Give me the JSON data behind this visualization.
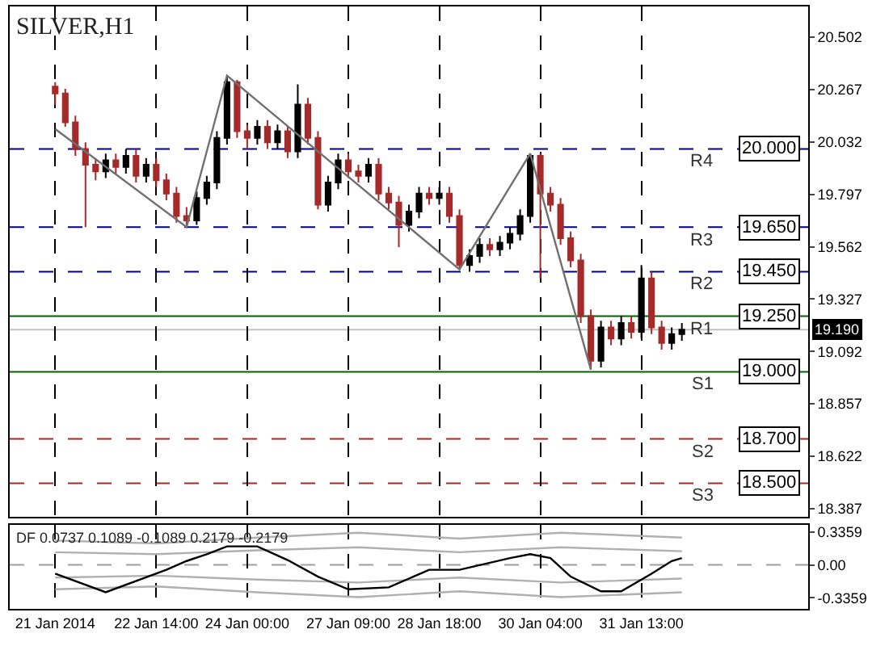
{
  "chart_data": [
    {
      "type": "candlestick",
      "title": "SILVER,H1",
      "categories": [
        null,
        null,
        null,
        null,
        null,
        null,
        null,
        null,
        null,
        null,
        null,
        null,
        null,
        null,
        null,
        null,
        null,
        null,
        null,
        null,
        null,
        null,
        null,
        null,
        null,
        null,
        null,
        null,
        null,
        null,
        null,
        null,
        null,
        null,
        null,
        null,
        null,
        null,
        null,
        null,
        null,
        null,
        null,
        null,
        null,
        null,
        null,
        null,
        null,
        null,
        null,
        null,
        null,
        null,
        null,
        null,
        null,
        null,
        null,
        null,
        null,
        null,
        null,
        null,
        null,
        null,
        null,
        null,
        null,
        null,
        null,
        null,
        null,
        null,
        null,
        null,
        null,
        null,
        null
      ],
      "ohlc": [
        null,
        null,
        null,
        null,
        [
          20.28,
          20.3,
          20.2,
          20.25
        ],
        [
          20.25,
          20.27,
          20.1,
          20.12
        ],
        [
          20.12,
          20.15,
          19.97,
          20.0
        ],
        [
          20.0,
          20.03,
          19.65,
          19.93
        ],
        [
          19.93,
          19.96,
          19.86,
          19.9
        ],
        [
          19.9,
          19.98,
          19.87,
          19.95
        ],
        [
          19.95,
          19.98,
          19.89,
          19.92
        ],
        [
          19.92,
          20.0,
          19.89,
          19.97
        ],
        [
          19.97,
          20.0,
          19.85,
          19.88
        ],
        [
          19.88,
          19.96,
          19.85,
          19.93
        ],
        [
          19.93,
          19.96,
          19.83,
          19.86
        ],
        [
          19.86,
          19.89,
          19.77,
          19.8
        ],
        [
          19.8,
          19.83,
          19.67,
          19.7
        ],
        [
          19.7,
          19.74,
          19.65,
          19.68
        ],
        [
          19.68,
          19.81,
          19.66,
          19.78
        ],
        [
          19.78,
          19.88,
          19.75,
          19.85
        ],
        [
          19.85,
          20.08,
          19.82,
          20.05
        ],
        [
          20.05,
          20.33,
          20.02,
          20.3
        ],
        [
          20.3,
          20.31,
          20.05,
          20.08
        ],
        [
          20.08,
          20.11,
          20.0,
          20.05
        ],
        [
          20.05,
          20.13,
          20.02,
          20.1
        ],
        [
          20.1,
          20.13,
          20.0,
          20.03
        ],
        [
          20.03,
          20.11,
          20.0,
          20.08
        ],
        [
          20.08,
          20.1,
          19.96,
          19.99
        ],
        [
          19.99,
          20.29,
          19.96,
          20.2
        ],
        [
          20.2,
          20.23,
          20.02,
          20.05
        ],
        [
          20.05,
          20.08,
          19.73,
          19.75
        ],
        [
          19.75,
          19.88,
          19.72,
          19.85
        ],
        [
          19.85,
          19.98,
          19.82,
          19.95
        ],
        [
          19.95,
          19.98,
          19.87,
          19.9
        ],
        [
          19.9,
          19.93,
          19.85,
          19.88
        ],
        [
          19.88,
          19.96,
          19.85,
          19.93
        ],
        [
          19.93,
          19.96,
          19.77,
          19.8
        ],
        [
          19.8,
          19.83,
          19.73,
          19.76
        ],
        [
          19.76,
          19.79,
          19.56,
          19.66
        ],
        [
          19.66,
          19.75,
          19.63,
          19.72
        ],
        [
          19.72,
          19.83,
          19.69,
          19.8
        ],
        [
          19.8,
          19.83,
          19.75,
          19.78
        ],
        [
          19.78,
          19.83,
          19.75,
          19.8
        ],
        [
          19.8,
          19.83,
          19.67,
          19.7
        ],
        [
          19.7,
          19.73,
          19.46,
          19.48
        ],
        [
          19.48,
          19.55,
          19.45,
          19.52
        ],
        [
          19.52,
          19.6,
          19.49,
          19.57
        ],
        [
          19.57,
          19.6,
          19.52,
          19.55
        ],
        [
          19.55,
          19.61,
          19.52,
          19.58
        ],
        [
          19.58,
          19.65,
          19.55,
          19.62
        ],
        [
          19.62,
          19.73,
          19.59,
          19.7
        ],
        [
          19.7,
          19.98,
          19.67,
          19.97
        ],
        [
          19.97,
          19.98,
          19.42,
          19.8
        ],
        [
          19.8,
          19.83,
          19.72,
          19.75
        ],
        [
          19.75,
          19.78,
          19.57,
          19.6
        ],
        [
          19.6,
          19.63,
          19.47,
          19.5
        ],
        [
          19.5,
          19.53,
          19.22,
          19.25
        ],
        [
          19.25,
          19.28,
          19.01,
          19.05
        ],
        [
          19.05,
          19.23,
          19.02,
          19.2
        ],
        [
          19.2,
          19.23,
          19.12,
          19.15
        ],
        [
          19.15,
          19.25,
          19.12,
          19.22
        ],
        [
          19.22,
          19.25,
          19.15,
          19.18
        ],
        [
          19.18,
          19.48,
          19.15,
          19.42
        ],
        [
          19.42,
          19.45,
          19.17,
          19.2
        ],
        [
          19.2,
          19.23,
          19.1,
          19.13
        ],
        [
          19.13,
          19.2,
          19.1,
          19.17
        ],
        [
          19.17,
          19.22,
          19.14,
          19.19
        ],
        null,
        null,
        null,
        null,
        null,
        null,
        null,
        null,
        null,
        null,
        null,
        null
      ],
      "colors": [
        null,
        null,
        null,
        null,
        "#a52a2a",
        "#a52a2a",
        "#a52a2a",
        "#a52a2a",
        "#a52a2a",
        "#000000",
        "#a52a2a",
        "#000000",
        "#a52a2a",
        "#000000",
        "#a52a2a",
        "#a52a2a",
        "#a52a2a",
        "#a52a2a",
        "#000000",
        "#000000",
        "#000000",
        "#000000",
        "#a52a2a",
        "#a52a2a",
        "#000000",
        "#a52a2a",
        "#000000",
        "#a52a2a",
        "#000000",
        "#a52a2a",
        "#a52a2a",
        "#000000",
        "#000000",
        "#a52a2a",
        "#a52a2a",
        "#000000",
        "#a52a2a",
        "#a52a2a",
        "#a52a2a",
        "#000000",
        "#000000",
        "#a52a2a",
        "#000000",
        "#a52a2a",
        "#a52a2a",
        "#000000",
        "#000000",
        "#a52a2a",
        "#000000",
        "#000000",
        "#000000",
        "#000000",
        "#a52a2a",
        "#a52a2a",
        "#a52a2a",
        "#a52a2a",
        "#a52a2a",
        "#a52a2a",
        "#000000",
        "#a52a2a",
        "#000000",
        "#a52a2a",
        "#000000",
        "#a52a2a",
        "#a52a2a",
        "#000000",
        "#000000",
        null,
        null,
        null,
        null,
        null,
        null,
        null,
        null,
        null,
        null,
        null,
        null
      ],
      "series": [
        {
          "type": "line",
          "color": "#707070",
          "values": [
            null,
            null,
            null,
            null,
            20.09,
            null,
            null,
            null,
            null,
            null,
            null,
            null,
            null,
            null,
            null,
            null,
            null,
            19.65,
            null,
            null,
            null,
            20.33,
            null,
            null,
            null,
            null,
            null,
            null,
            null,
            null,
            null,
            null,
            null,
            null,
            null,
            null,
            null,
            null,
            null,
            null,
            null,
            null,
            null,
            null,
            19.46,
            null,
            null,
            null,
            null,
            null,
            null,
            19.98,
            null,
            null,
            null,
            null,
            null,
            19.01,
            null,
            null,
            null,
            null,
            null,
            null,
            null,
            null,
            null,
            null,
            null,
            null,
            null,
            null,
            null,
            null,
            null,
            null,
            null,
            null,
            null
          ]
        }
      ],
      "ylim": [
        18.35,
        20.64
      ],
      "yticks": [
        18.387,
        18.622,
        18.857,
        19.092,
        19.327,
        19.562,
        19.797,
        20.032,
        20.267,
        20.502
      ],
      "grid": "x",
      "ref_lines": [
        {
          "axis": "y",
          "value": 20.0,
          "label": "R4",
          "color": "#000080",
          "line_style": "dashed"
        },
        {
          "axis": "y",
          "value": 19.65,
          "label": "R3",
          "color": "#000080",
          "line_style": "dashed"
        },
        {
          "axis": "y",
          "value": 19.45,
          "label": "R2",
          "color": "#000080",
          "line_style": "dashed"
        },
        {
          "axis": "y",
          "value": 19.25,
          "label": "R1",
          "color": "#006400",
          "line_style": "solid"
        },
        {
          "axis": "y",
          "value": 19.0,
          "label": "S1",
          "color": "#006400",
          "line_style": "solid"
        },
        {
          "axis": "y",
          "value": 18.7,
          "label": "S2",
          "color": "#b22222",
          "line_style": "dashed"
        },
        {
          "axis": "y",
          "value": 18.5,
          "label": "S3",
          "color": "#b22222",
          "line_style": "dashed"
        },
        {
          "axis": "y",
          "value": 19.19,
          "color": "#c0c0c0",
          "line_style": "solid"
        }
      ],
      "annotations": [
        {
          "text": "20.000",
          "y": 20.0
        },
        {
          "text": "19.650",
          "y": 19.65
        },
        {
          "text": "19.450",
          "y": 19.45
        },
        {
          "text": "19.250",
          "y": 19.25
        },
        {
          "text": "19.000",
          "y": 19.0
        },
        {
          "text": "18.700",
          "y": 18.7
        },
        {
          "text": "18.500",
          "y": 18.5
        },
        {
          "text": "19.190",
          "y": 19.19
        }
      ]
    },
    {
      "type": "line",
      "title": "DF 0.0737 0.1089 -0.1089 0.2179 -0.2179",
      "categories": [
        null,
        null,
        null,
        null,
        "21 Jan 2014",
        null,
        null,
        null,
        null,
        null,
        null,
        null,
        null,
        null,
        "22 Jan 14:00",
        null,
        null,
        null,
        null,
        null,
        null,
        null,
        null,
        "24 Jan 00:00",
        null,
        null,
        null,
        null,
        null,
        null,
        null,
        null,
        null,
        "27 Jan 09:00",
        null,
        null,
        null,
        null,
        null,
        null,
        null,
        null,
        "28 Jan 18:00",
        null,
        null,
        null,
        null,
        null,
        null,
        null,
        null,
        null,
        "30 Jan 04:00",
        null,
        null,
        null,
        null,
        null,
        null,
        null,
        null,
        null,
        "31 Jan 13:00",
        null,
        null,
        null,
        null,
        null,
        null,
        null,
        null,
        null,
        null,
        null,
        null,
        null,
        null,
        null,
        null
      ],
      "series": [
        {
          "color": "#b0b0b0",
          "values": [
            null,
            null,
            null,
            null,
            0.25,
            null,
            null,
            null,
            null,
            null,
            null,
            null,
            null,
            null,
            0.22,
            null,
            null,
            null,
            null,
            null,
            null,
            null,
            null,
            null,
            0.28,
            null,
            null,
            null,
            null,
            null,
            null,
            null,
            null,
            null,
            0.33,
            null,
            null,
            null,
            null,
            null,
            null,
            null,
            null,
            null,
            0.27,
            null,
            null,
            null,
            null,
            null,
            null,
            null,
            null,
            null,
            0.33,
            null,
            null,
            null,
            null,
            null,
            null,
            null,
            null,
            null,
            null,
            null,
            0.28,
            null,
            null,
            null,
            null,
            null,
            null,
            null,
            null,
            null,
            null,
            null,
            null
          ]
        },
        {
          "color": "#b0b0b0",
          "values": [
            null,
            null,
            null,
            null,
            0.13,
            null,
            null,
            null,
            null,
            null,
            null,
            null,
            null,
            null,
            0.11,
            null,
            null,
            null,
            null,
            null,
            null,
            null,
            null,
            null,
            0.15,
            null,
            null,
            null,
            null,
            null,
            null,
            null,
            null,
            null,
            0.18,
            null,
            null,
            null,
            null,
            null,
            null,
            null,
            null,
            null,
            0.13,
            null,
            null,
            null,
            null,
            null,
            null,
            null,
            null,
            null,
            0.18,
            null,
            null,
            null,
            null,
            null,
            null,
            null,
            null,
            null,
            null,
            null,
            0.14,
            null,
            null,
            null,
            null,
            null,
            null,
            null,
            null,
            null,
            null,
            null,
            null
          ]
        },
        {
          "color": "#b0b0b0",
          "values": [
            null,
            null,
            null,
            null,
            -0.13,
            null,
            null,
            null,
            null,
            null,
            null,
            null,
            null,
            null,
            -0.11,
            null,
            null,
            null,
            null,
            null,
            null,
            null,
            null,
            null,
            -0.15,
            null,
            null,
            null,
            null,
            null,
            null,
            null,
            null,
            null,
            -0.18,
            null,
            null,
            null,
            null,
            null,
            null,
            null,
            null,
            null,
            -0.13,
            null,
            null,
            null,
            null,
            null,
            null,
            null,
            null,
            null,
            -0.18,
            null,
            null,
            null,
            null,
            null,
            null,
            null,
            null,
            null,
            null,
            null,
            -0.14,
            null,
            null,
            null,
            null,
            null,
            null,
            null,
            null,
            null,
            null,
            null,
            null
          ]
        },
        {
          "color": "#b0b0b0",
          "values": [
            null,
            null,
            null,
            null,
            -0.25,
            null,
            null,
            null,
            null,
            null,
            null,
            null,
            null,
            null,
            -0.22,
            null,
            null,
            null,
            null,
            null,
            null,
            null,
            null,
            null,
            -0.28,
            null,
            null,
            null,
            null,
            null,
            null,
            null,
            null,
            null,
            -0.33,
            null,
            null,
            null,
            null,
            null,
            null,
            null,
            null,
            null,
            -0.27,
            null,
            null,
            null,
            null,
            null,
            null,
            null,
            null,
            null,
            -0.33,
            null,
            null,
            null,
            null,
            null,
            null,
            null,
            null,
            null,
            null,
            null,
            -0.28,
            null,
            null,
            null,
            null,
            null,
            null,
            null,
            null,
            null,
            null,
            null,
            null
          ]
        },
        {
          "color": "#000000",
          "values": [
            null,
            null,
            null,
            null,
            -0.09,
            null,
            null,
            null,
            null,
            -0.28,
            null,
            null,
            null,
            null,
            null,
            -0.05,
            null,
            0.04,
            null,
            0.11,
            null,
            0.19,
            null,
            null,
            0.19,
            null,
            null,
            0.05,
            null,
            null,
            -0.12,
            null,
            null,
            -0.25,
            null,
            null,
            null,
            -0.23,
            null,
            null,
            null,
            -0.05,
            null,
            null,
            -0.05,
            null,
            null,
            null,
            null,
            0.07,
            null,
            0.11,
            null,
            0.07,
            null,
            -0.12,
            null,
            null,
            -0.27,
            null,
            -0.27,
            null,
            null,
            -0.09,
            null,
            0.04,
            0.07,
            null,
            null,
            null,
            null,
            null,
            null,
            null,
            null,
            null,
            null,
            null,
            null
          ]
        }
      ],
      "ylim": [
        -0.45,
        0.41
      ],
      "yticks": [
        0.3359,
        {
          "value": 0,
          "label": "0.00"
        },
        -0.3359
      ],
      "grid": "x",
      "ref_lines": [
        {
          "axis": "y",
          "value": 0,
          "color": "#a0a0a0",
          "line_style": "dashed"
        }
      ]
    }
  ]
}
